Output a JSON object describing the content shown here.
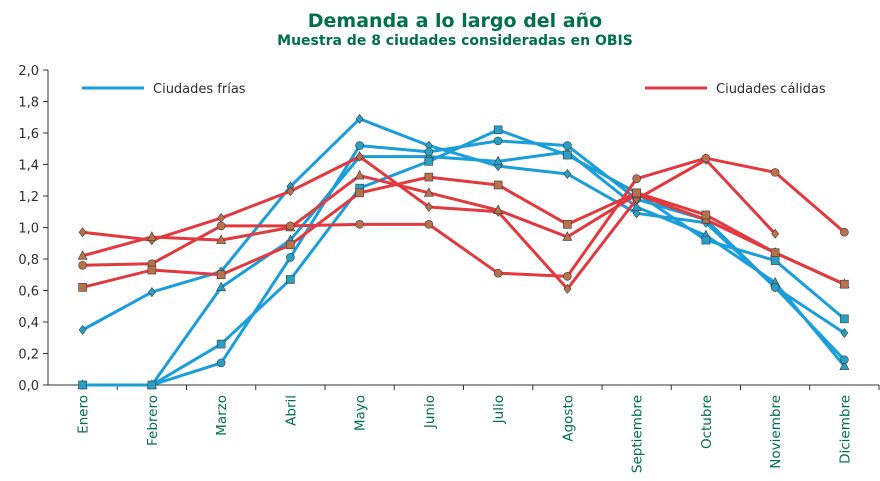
{
  "chart_data": {
    "type": "line",
    "title": "Demanda a lo largo del año",
    "subtitle": "Muestra de 8 ciudades consideradas en OBIS",
    "categories": [
      "Enero",
      "Febrero",
      "Marzo",
      "Abril",
      "Mayo",
      "Junio",
      "Julio",
      "Agosto",
      "Septiembre",
      "Octubre",
      "Noviembre",
      "Diciembre"
    ],
    "ylim": [
      0,
      2
    ],
    "yticks": [
      {
        "value": 0,
        "label": "0,0"
      },
      {
        "value": 0.2,
        "label": "0,2"
      },
      {
        "value": 0.4,
        "label": "0,4"
      },
      {
        "value": 0.6,
        "label": "0,6"
      },
      {
        "value": 0.8,
        "label": "0,8"
      },
      {
        "value": 1,
        "label": "1,0"
      },
      {
        "value": 1.2,
        "label": "1,2"
      },
      {
        "value": 1.4,
        "label": "1,4"
      },
      {
        "value": 1.6,
        "label": "1,6"
      },
      {
        "value": 1.8,
        "label": "1,8"
      },
      {
        "value": 2,
        "label": "2,0"
      }
    ],
    "groups": [
      {
        "name": "Ciudades frías",
        "color": "#1a9ed9",
        "marker_color": "#2a9fc4",
        "legend": "top-left",
        "series": [
          {
            "marker": "diamond",
            "values": [
              0.35,
              0.59,
              0.72,
              1.26,
              1.69,
              1.52,
              1.39,
              1.34,
              1.09,
              1.03,
              0.62,
              0.33
            ]
          },
          {
            "marker": "triangle",
            "values": [
              0,
              0,
              0.62,
              0.92,
              1.45,
              1.45,
              1.42,
              1.48,
              1.13,
              0.95,
              0.65,
              0.12
            ]
          },
          {
            "marker": "circle",
            "values": [
              0,
              0,
              0.14,
              0.81,
              1.52,
              1.48,
              1.55,
              1.52,
              1.18,
              1.05,
              0.62,
              0.16
            ]
          },
          {
            "marker": "square",
            "values": [
              0,
              0,
              0.26,
              0.67,
              1.25,
              1.42,
              1.62,
              1.46,
              1.22,
              0.92,
              0.79,
              0.42
            ]
          }
        ]
      },
      {
        "name": "Ciudades cálidas",
        "color": "#e0393e",
        "marker_color": "#b9704c",
        "legend": "top-right",
        "series": [
          {
            "marker": "diamond",
            "values": [
              0.97,
              0.92,
              1.06,
              1.23,
              1.45,
              1.13,
              1.1,
              0.61,
              1.18,
              1.43,
              0.96,
              null
            ]
          },
          {
            "marker": "triangle",
            "values": [
              0.82,
              0.94,
              0.92,
              1.0,
              1.33,
              1.22,
              1.11,
              0.94,
              1.21,
              1.05,
              0.84,
              0.64
            ]
          },
          {
            "marker": "circle",
            "values": [
              0.76,
              0.77,
              1.01,
              1.01,
              1.02,
              1.02,
              0.71,
              0.69,
              1.31,
              1.44,
              1.35,
              0.97
            ]
          },
          {
            "marker": "square",
            "values": [
              0.62,
              0.73,
              0.7,
              0.89,
              1.22,
              1.32,
              1.27,
              1.02,
              1.22,
              1.08,
              0.84,
              0.64
            ]
          }
        ]
      }
    ]
  }
}
